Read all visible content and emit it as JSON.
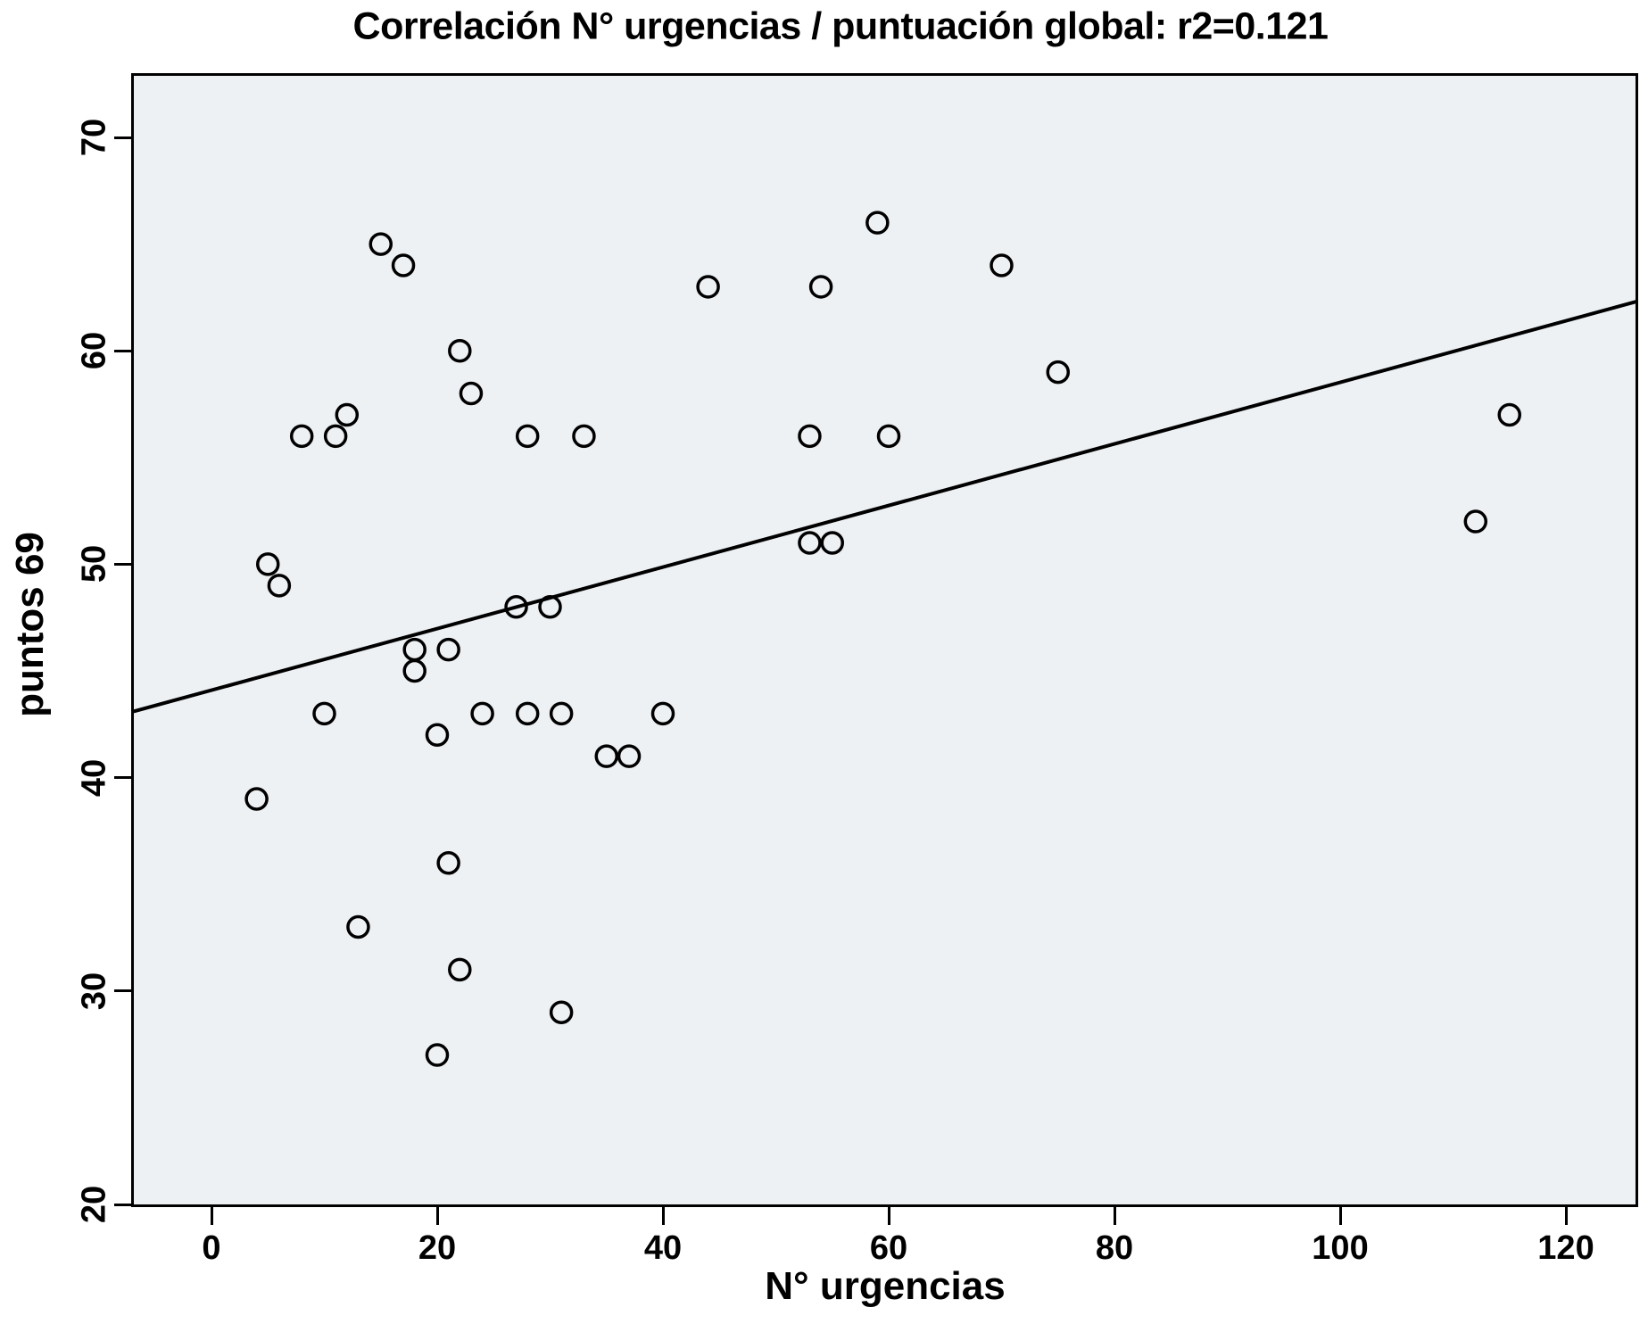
{
  "colors": {
    "page_bg": "#ffffff",
    "plot_bg": "#eef1f4",
    "stroke": "#000000",
    "text": "#000000"
  },
  "chart_data": {
    "type": "scatter",
    "title": "Correlación N° urgencias / puntuación global: r2=0.121",
    "xlabel": "N° urgencias",
    "ylabel": "puntos 69",
    "r_squared": "0.121",
    "xticks": [
      0,
      20,
      40,
      60,
      80,
      100,
      120
    ],
    "yticks": [
      20,
      30,
      40,
      50,
      60,
      70
    ],
    "xlim": [
      -6.9,
      126.2
    ],
    "ylim": [
      20,
      72.9
    ],
    "grid": false,
    "legend": "none",
    "point_style": {
      "shape": "open-circle",
      "radius_px": 11.5,
      "stroke_width": 3.5
    },
    "points": [
      [
        15,
        65
      ],
      [
        17,
        64
      ],
      [
        59,
        66
      ],
      [
        70,
        64
      ],
      [
        44,
        63
      ],
      [
        54,
        63
      ],
      [
        22,
        60
      ],
      [
        23,
        58
      ],
      [
        75,
        59
      ],
      [
        8,
        56
      ],
      [
        11,
        56
      ],
      [
        12,
        57
      ],
      [
        28,
        56
      ],
      [
        33,
        56
      ],
      [
        53,
        56
      ],
      [
        60,
        56
      ],
      [
        115,
        57
      ],
      [
        112,
        52
      ],
      [
        53,
        51
      ],
      [
        55,
        51
      ],
      [
        5,
        50
      ],
      [
        6,
        49
      ],
      [
        30,
        48
      ],
      [
        27,
        48
      ],
      [
        18,
        46
      ],
      [
        18,
        45
      ],
      [
        21,
        46
      ],
      [
        10,
        43
      ],
      [
        24,
        43
      ],
      [
        28,
        43
      ],
      [
        31,
        43
      ],
      [
        40,
        43
      ],
      [
        20,
        42
      ],
      [
        35,
        41
      ],
      [
        37,
        41
      ],
      [
        4,
        39
      ],
      [
        21,
        36
      ],
      [
        13,
        33
      ],
      [
        22,
        31
      ],
      [
        31,
        29
      ],
      [
        20,
        27
      ]
    ],
    "trendline": {
      "x1": -6.9,
      "y1": 43.1,
      "x2": 126.2,
      "y2": 62.3
    }
  }
}
